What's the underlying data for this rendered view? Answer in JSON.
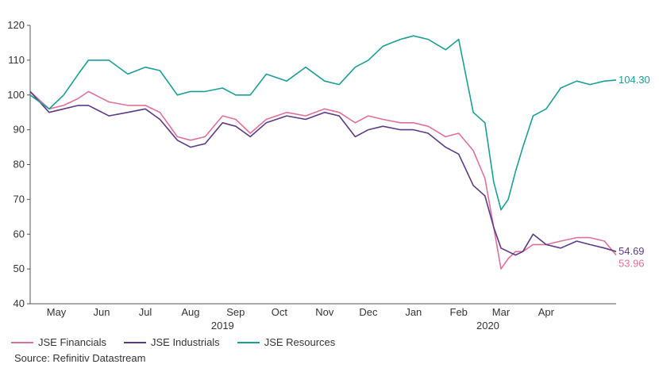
{
  "chart_data": {
    "type": "line",
    "source": "Source: Refinitiv Datastream",
    "ylim": [
      40,
      120
    ],
    "yticks": [
      40,
      50,
      60,
      70,
      80,
      90,
      100,
      110,
      120
    ],
    "xlim": [
      "2019-04-22",
      "2020-05-28"
    ],
    "month_ticks": [
      {
        "label": "May",
        "date": "2019-05-10"
      },
      {
        "label": "Jun",
        "date": "2019-06-10"
      },
      {
        "label": "Jul",
        "date": "2019-07-10"
      },
      {
        "label": "Aug",
        "date": "2019-08-10"
      },
      {
        "label": "Sep",
        "date": "2019-09-10"
      },
      {
        "label": "Oct",
        "date": "2019-10-10"
      },
      {
        "label": "Nov",
        "date": "2019-11-10"
      },
      {
        "label": "Dec",
        "date": "2019-12-10"
      },
      {
        "label": "Jan",
        "date": "2020-01-10"
      },
      {
        "label": "Feb",
        "date": "2020-02-10"
      },
      {
        "label": "Mar",
        "date": "2020-03-10"
      },
      {
        "label": "Apr",
        "date": "2020-04-10"
      }
    ],
    "year_ticks": [
      {
        "label": "2019",
        "date": "2019-09-01"
      },
      {
        "label": "2020",
        "date": "2020-03-01"
      }
    ],
    "dates": [
      "2019-04-22",
      "2019-05-05",
      "2019-05-15",
      "2019-05-25",
      "2019-06-01",
      "2019-06-15",
      "2019-06-28",
      "2019-07-10",
      "2019-07-20",
      "2019-08-01",
      "2019-08-10",
      "2019-08-20",
      "2019-09-01",
      "2019-09-10",
      "2019-09-20",
      "2019-10-01",
      "2019-10-15",
      "2019-10-28",
      "2019-11-10",
      "2019-11-20",
      "2019-12-01",
      "2019-12-10",
      "2019-12-20",
      "2020-01-01",
      "2020-01-10",
      "2020-01-20",
      "2020-02-01",
      "2020-02-10",
      "2020-02-20",
      "2020-02-28",
      "2020-03-05",
      "2020-03-10",
      "2020-03-15",
      "2020-03-20",
      "2020-03-25",
      "2020-04-01",
      "2020-04-10",
      "2020-04-20",
      "2020-05-01",
      "2020-05-10",
      "2020-05-20",
      "2020-05-28"
    ],
    "series": [
      {
        "name": "JSE Financials",
        "color": "#e0709a",
        "end_label": "53.96",
        "values": [
          101,
          96,
          97,
          99,
          101,
          98,
          97,
          97,
          95,
          88,
          87,
          88,
          94,
          93,
          89,
          93,
          95,
          94,
          96,
          95,
          92,
          94,
          93,
          92,
          92,
          91,
          88,
          89,
          84,
          76,
          62,
          50,
          53,
          55,
          55,
          57,
          57,
          58,
          59,
          59,
          58,
          54
        ]
      },
      {
        "name": "JSE Industrials",
        "color": "#5b3a86",
        "end_label": "54.69",
        "values": [
          101,
          95,
          96,
          97,
          97,
          94,
          95,
          96,
          93,
          87,
          85,
          86,
          92,
          91,
          88,
          92,
          94,
          93,
          95,
          94,
          88,
          90,
          91,
          90,
          90,
          89,
          85,
          83,
          74,
          71,
          62,
          56,
          55,
          54,
          55,
          60,
          57,
          56,
          58,
          57,
          56,
          55
        ]
      },
      {
        "name": "JSE Resources",
        "color": "#1a9e96",
        "end_label": "104.30",
        "values": [
          100,
          96,
          100,
          106,
          110,
          110,
          106,
          108,
          107,
          100,
          101,
          101,
          102,
          100,
          100,
          106,
          104,
          108,
          104,
          103,
          108,
          110,
          114,
          116,
          117,
          116,
          113,
          116,
          95,
          92,
          75,
          67,
          70,
          78,
          85,
          94,
          96,
          102,
          104,
          103,
          104,
          104.3
        ]
      }
    ]
  }
}
